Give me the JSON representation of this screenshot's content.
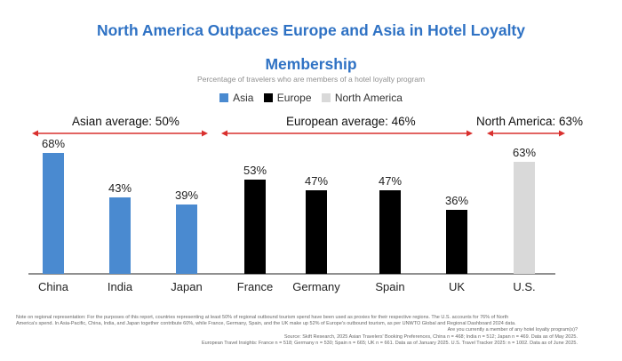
{
  "header": {
    "title_line1": "North America Outpaces Europe and Asia in Hotel Loyalty",
    "title_line2": "Membership",
    "subtitle": "Percentage of travelers who are members of a hotel loyalty program"
  },
  "legend": [
    {
      "label": "Asia",
      "color": "#4a8ad0"
    },
    {
      "label": "Europe",
      "color": "#000000"
    },
    {
      "label": "North America",
      "color": "#d9d9d9"
    }
  ],
  "regions": {
    "asia": "Asian average: 50%",
    "europe": "European average: 46%",
    "north_america": "North America: 63%"
  },
  "colors": {
    "arrow": "#d9302e",
    "axis": "#222222"
  },
  "chart_data": {
    "type": "bar",
    "categories": [
      "China",
      "India",
      "Japan",
      "France",
      "Germany",
      "Spain",
      "UK",
      "U.S."
    ],
    "values": [
      68,
      43,
      39,
      53,
      47,
      47,
      36,
      63
    ],
    "value_labels": [
      "68%",
      "43%",
      "39%",
      "53%",
      "47%",
      "47%",
      "36%",
      "63%"
    ],
    "groups": [
      "Asia",
      "Asia",
      "Asia",
      "Europe",
      "Europe",
      "Europe",
      "Europe",
      "North America"
    ],
    "ylim": [
      0,
      100
    ],
    "title": "North America Outpaces Europe and Asia in Hotel Loyalty Membership",
    "ylabel": "Percentage of travelers who are members of a hotel loyalty program",
    "xlabel": ""
  },
  "footnotes": {
    "note1": "Note on regional representation: For the purposes of this report, countries representing at least 50% of regional outbound tourism spend have been used as proxies for their respective regions. The U.S. accounts for 76% of North",
    "note2": "America's spend. In Asia-Pacific, China, India, and Japan together contribute 60%, while France, Germany, Spain, and the UK make up 52% of Europe's outbound tourism, as per UNWTO Global and Regional Dashboard 2024 data.",
    "question": "Are you currently a member of any hotel loyalty program(s)?",
    "source1": "Source: Skift Research, 2025 Asian Travelers' Booking Preferences, China n = 468; India n = 512; Japan n = 469. Data as of May 2025.",
    "source2": "European Travel Insights: France n = 518; Germany n = 530; Spain n = 665; UK n = 661. Data as of January 2025. U.S. Travel Tracker 2025: n = 1002. Data as of June 2025."
  }
}
